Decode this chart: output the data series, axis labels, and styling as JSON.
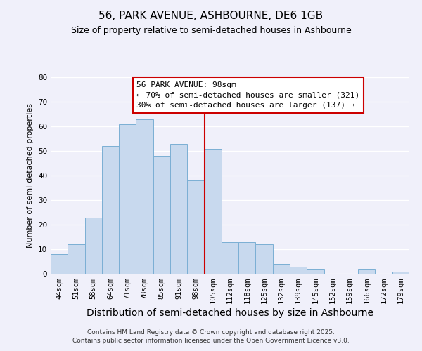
{
  "title": "56, PARK AVENUE, ASHBOURNE, DE6 1GB",
  "subtitle": "Size of property relative to semi-detached houses in Ashbourne",
  "xlabel": "Distribution of semi-detached houses by size in Ashbourne",
  "ylabel": "Number of semi-detached properties",
  "categories": [
    "44sqm",
    "51sqm",
    "58sqm",
    "64sqm",
    "71sqm",
    "78sqm",
    "85sqm",
    "91sqm",
    "98sqm",
    "105sqm",
    "112sqm",
    "118sqm",
    "125sqm",
    "132sqm",
    "139sqm",
    "145sqm",
    "152sqm",
    "159sqm",
    "166sqm",
    "172sqm",
    "179sqm"
  ],
  "values": [
    8,
    12,
    23,
    52,
    61,
    63,
    48,
    53,
    38,
    51,
    13,
    13,
    12,
    4,
    3,
    2,
    0,
    0,
    2,
    0,
    1
  ],
  "bar_color": "#c8d9ee",
  "bar_edge_color": "#7bafd4",
  "highlight_index": 8,
  "highlight_line_color": "#cc0000",
  "ylim": [
    0,
    80
  ],
  "yticks": [
    0,
    10,
    20,
    30,
    40,
    50,
    60,
    70,
    80
  ],
  "annotation_title": "56 PARK AVENUE: 98sqm",
  "annotation_line1": "← 70% of semi-detached houses are smaller (321)",
  "annotation_line2": "30% of semi-detached houses are larger (137) →",
  "annotation_box_color": "#ffffff",
  "annotation_box_edge": "#cc0000",
  "footer1": "Contains HM Land Registry data © Crown copyright and database right 2025.",
  "footer2": "Contains public sector information licensed under the Open Government Licence v3.0.",
  "background_color": "#f0f0fa",
  "grid_color": "#ffffff",
  "title_fontsize": 11,
  "subtitle_fontsize": 9,
  "xlabel_fontsize": 10,
  "ylabel_fontsize": 8,
  "tick_fontsize": 7.5,
  "annotation_fontsize": 8,
  "footer_fontsize": 6.5
}
